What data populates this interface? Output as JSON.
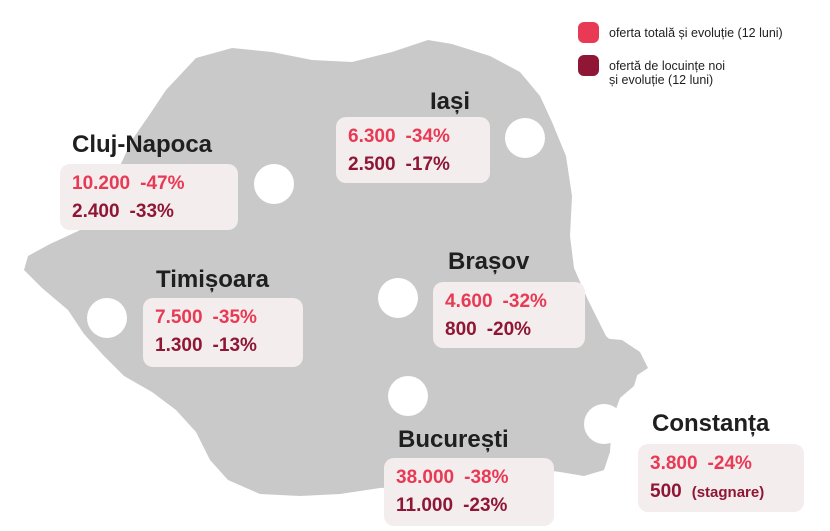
{
  "colors": {
    "map_fill": "#c9c9c9",
    "total_offer": "#e83a55",
    "new_offer": "#8f1735",
    "card_bg": "#f3eded"
  },
  "legend": {
    "total": "oferta totală și evoluție (12 luni)",
    "new": "ofertă de locuințe noi\nși evoluție (12 luni)"
  },
  "cities": {
    "cluj": {
      "name": "Cluj-Napoca",
      "total": "10.200",
      "total_change": "-47%",
      "new": "2.400",
      "new_change": "-33%"
    },
    "iasi": {
      "name": "Iași",
      "total": "6.300",
      "total_change": "-34%",
      "new": "2.500",
      "new_change": "-17%"
    },
    "timisoara": {
      "name": "Timișoara",
      "total": "7.500",
      "total_change": "-35%",
      "new": "1.300",
      "new_change": "-13%"
    },
    "brasov": {
      "name": "Brașov",
      "total": "4.600",
      "total_change": "-32%",
      "new": "800",
      "new_change": "-20%"
    },
    "bucuresti": {
      "name": "București",
      "total": "38.000",
      "total_change": "-38%",
      "new": "11.000",
      "new_change": "-23%"
    },
    "constanta": {
      "name": "Constanța",
      "total": "3.800",
      "total_change": "-24%",
      "new": "500",
      "new_change": "(stagnare)"
    }
  }
}
